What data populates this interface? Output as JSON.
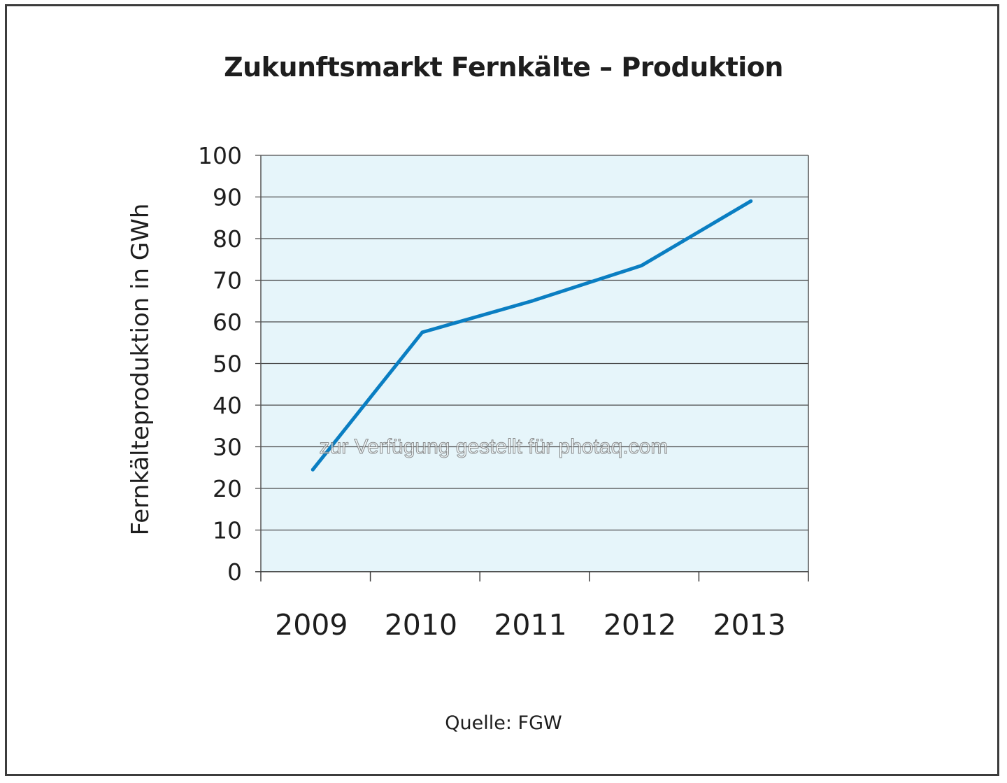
{
  "chart_data": {
    "type": "line",
    "title": "Zukunftsmarkt Fernkälte – Produktion",
    "ylabel": "Fernkälteproduktion in GWh",
    "xlabel": "",
    "categories": [
      "2009",
      "2010",
      "2011",
      "2012",
      "2013"
    ],
    "series": [
      {
        "values": [
          24.5,
          57.5,
          65,
          73.5,
          89
        ]
      }
    ],
    "ylim": [
      0,
      100
    ],
    "yticks": [
      0,
      10,
      20,
      30,
      40,
      50,
      60,
      70,
      80,
      90,
      100
    ],
    "grid": true,
    "legend": "none",
    "source": "Quelle: FGW",
    "watermark": "zur Verfügung gestellt für photaq.com"
  },
  "colors": {
    "line": "#0a7ec2",
    "plot_background": "#e6f5fa",
    "gridline": "#4a4a4a",
    "text": "#1e1e1e"
  }
}
